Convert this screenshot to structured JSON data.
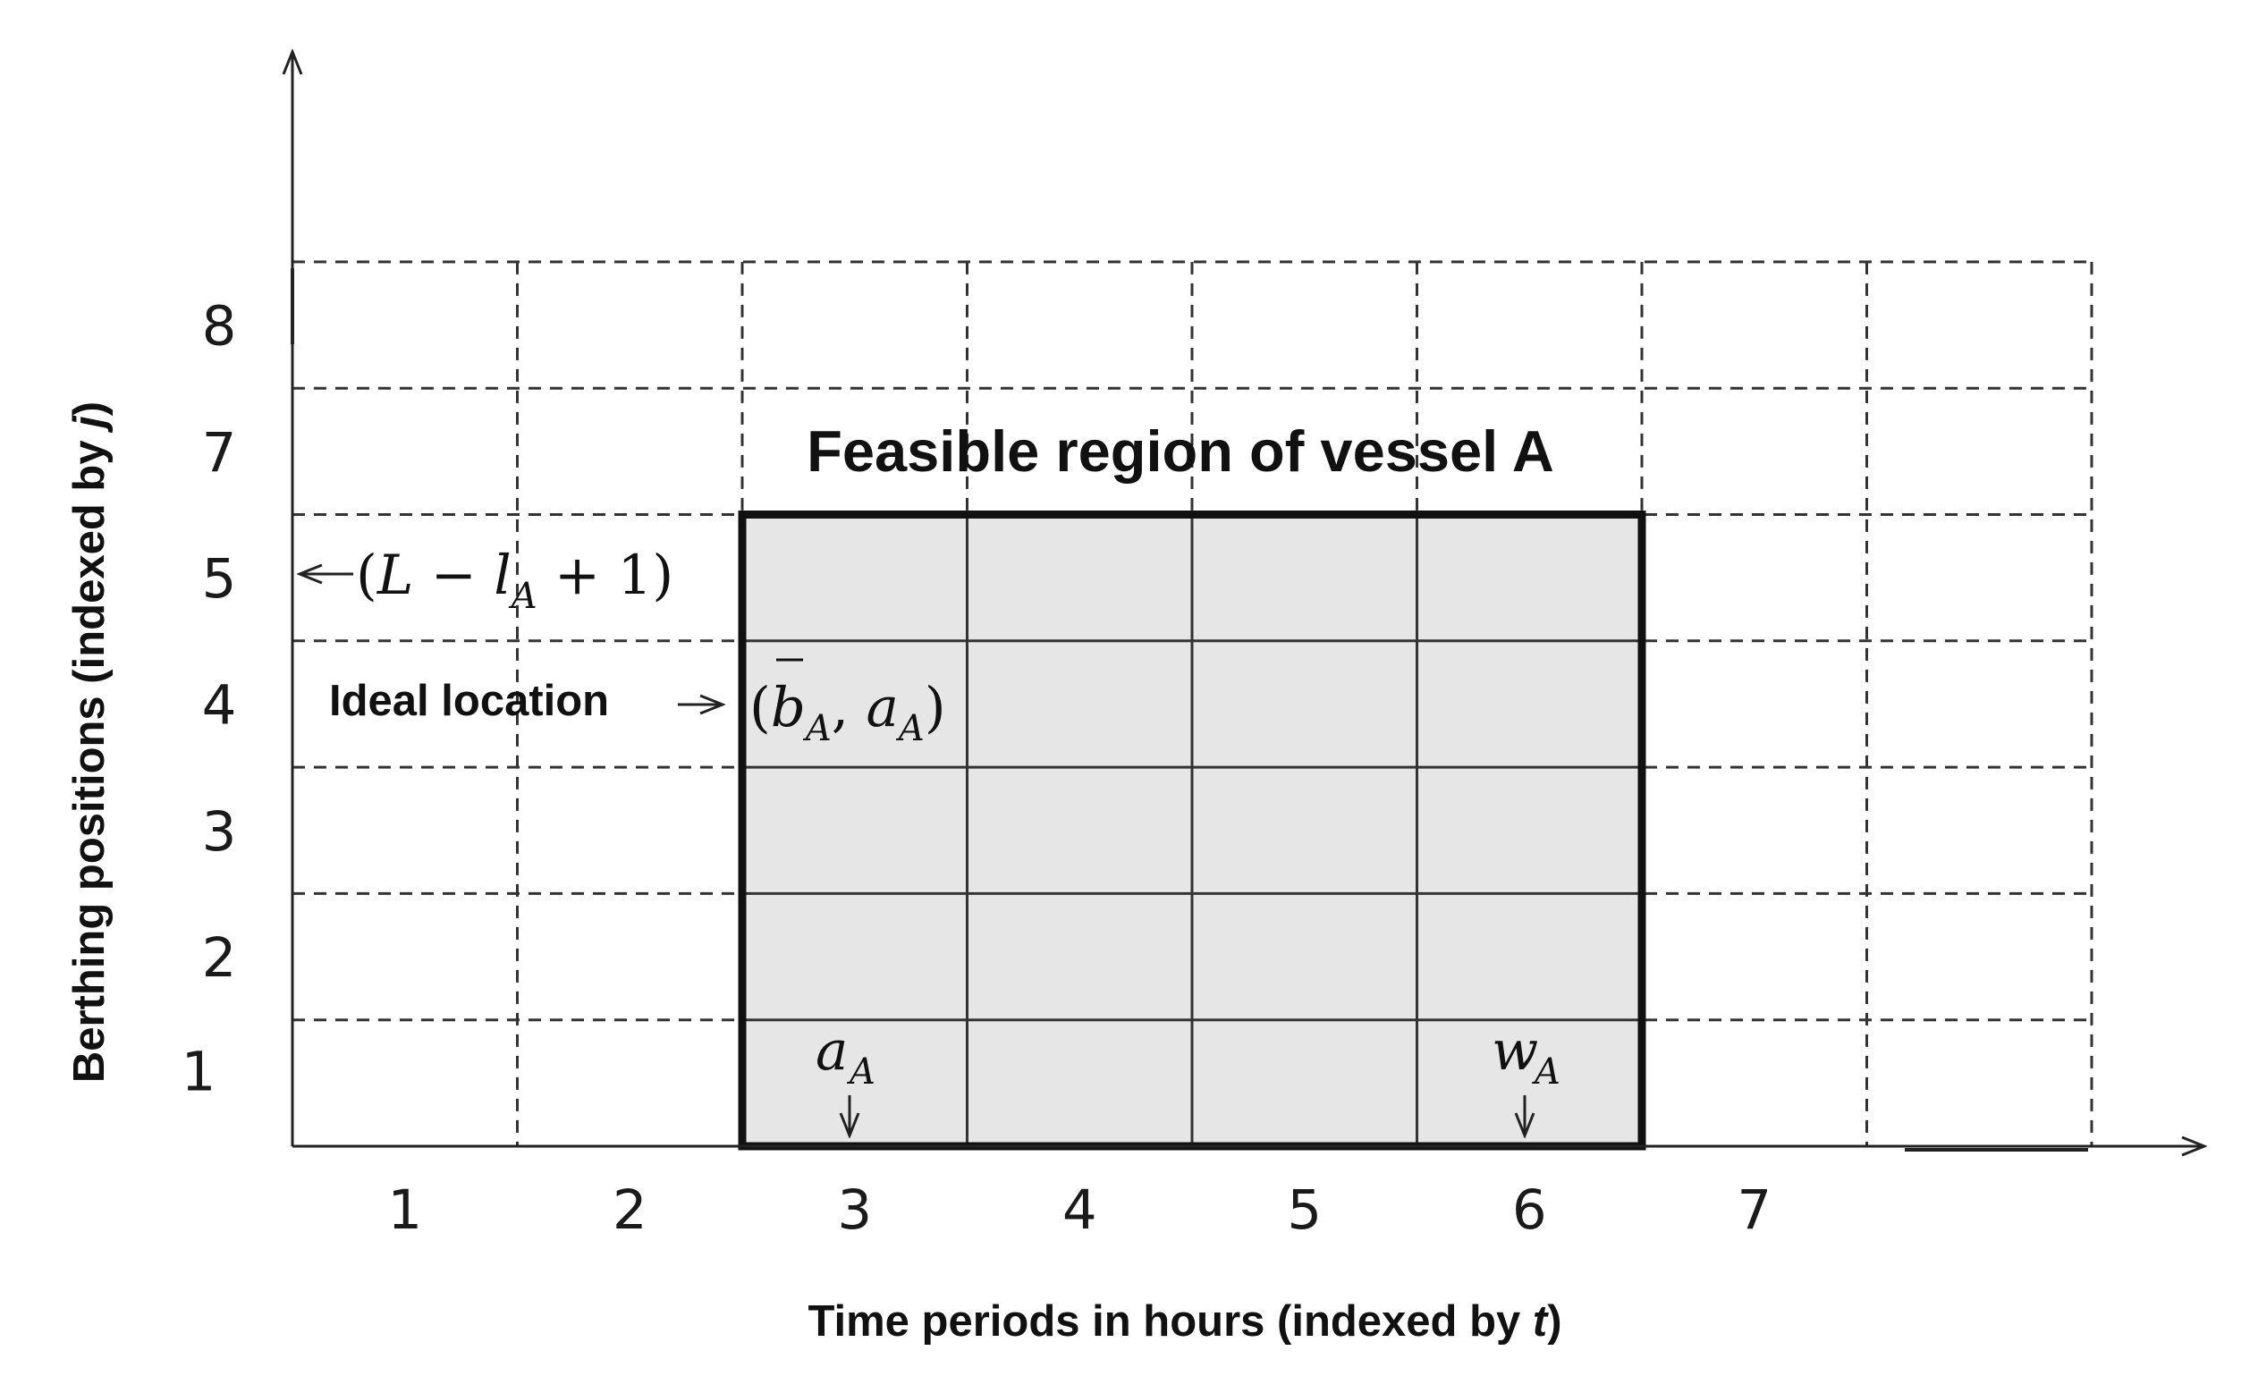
{
  "axes": {
    "x_title": "Time periods in hours (indexed by t)",
    "y_title": "Berthing positions (indexed by j)",
    "x_ticks": [
      "1",
      "2",
      "3",
      "4",
      "5",
      "6",
      "7"
    ],
    "y_ticks": [
      "1",
      "2",
      "3",
      "4",
      "5",
      "7",
      "8"
    ]
  },
  "region": {
    "title": "Feasible region of vessel A",
    "fill": "#e6e6e6",
    "t_start": 3,
    "t_end": 6,
    "j_start": 1,
    "j_end": 5
  },
  "annotations": {
    "upper_bound": "←(L − lA + 1)",
    "ideal_label": "Ideal location →",
    "ideal_point": "(b̄A, aA)",
    "arrival": "aA",
    "departure": "wA"
  }
}
